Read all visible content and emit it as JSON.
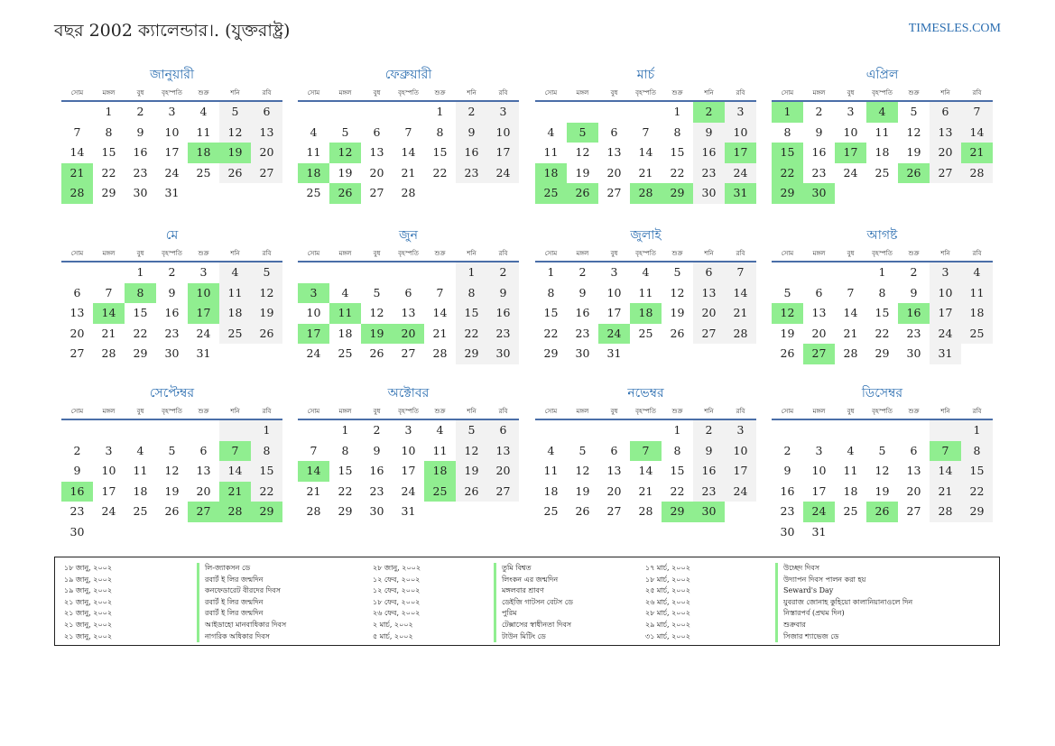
{
  "header": {
    "title": "বছর 2002 ক্যালেন্ডার।. (যুক্তরাষ্ট্র)",
    "site": "TIMESLES.COM"
  },
  "weekdays": [
    "সোম",
    "মঙ্গল",
    "বুধ",
    "বৃহস্পতি",
    "শুক্র",
    "শনি",
    "রবি"
  ],
  "colors": {
    "accent": "#2a6db0",
    "holiday": "#90ee90",
    "weekend": "#f2f2f2",
    "rule": "#4a6ea8"
  },
  "months": [
    {
      "name": "জানুয়ারী",
      "offset": 1,
      "days": 31,
      "holidays": [
        18,
        19,
        21,
        28
      ]
    },
    {
      "name": "ফেব্রুয়ারী",
      "offset": 4,
      "days": 28,
      "holidays": [
        12,
        18,
        26
      ]
    },
    {
      "name": "মার্চ",
      "offset": 4,
      "days": 31,
      "holidays": [
        2,
        5,
        17,
        18,
        25,
        26,
        28,
        29,
        31
      ]
    },
    {
      "name": "এপ্রিল",
      "offset": 0,
      "days": 30,
      "holidays": [
        1,
        4,
        15,
        17,
        21,
        22,
        26,
        29,
        30
      ]
    },
    {
      "name": "মে",
      "offset": 2,
      "days": 31,
      "holidays": [
        8,
        10,
        14,
        17
      ]
    },
    {
      "name": "জুন",
      "offset": 5,
      "days": 30,
      "holidays": [
        3,
        11,
        17,
        19,
        20
      ]
    },
    {
      "name": "জুলাই",
      "offset": 0,
      "days": 31,
      "holidays": [
        18,
        24
      ]
    },
    {
      "name": "আগষ্ট",
      "offset": 3,
      "days": 31,
      "holidays": [
        12,
        16,
        27
      ]
    },
    {
      "name": "সেপ্টেম্বর",
      "offset": 6,
      "days": 30,
      "holidays": [
        7,
        16,
        21,
        27,
        28,
        29
      ]
    },
    {
      "name": "অক্টোবর",
      "offset": 1,
      "days": 31,
      "holidays": [
        14,
        18,
        25
      ]
    },
    {
      "name": "নভেম্বর",
      "offset": 4,
      "days": 30,
      "holidays": [
        7,
        29,
        30
      ]
    },
    {
      "name": "ডিসেম্বর",
      "offset": 6,
      "days": 31,
      "holidays": [
        7,
        24,
        26
      ]
    }
  ],
  "holiday_list": [
    [
      {
        "date": "১৮ জানু, ২০০২",
        "name": "লি-জ্যাকসন ডে"
      },
      {
        "date": "১৯ জানু, ২০০২",
        "name": "রবার্ট ই লির জন্মদিন"
      },
      {
        "date": "১৯ জানু, ২০০২",
        "name": "কনফেডারেট বীরদের দিবস"
      },
      {
        "date": "২১ জানু, ২০০২",
        "name": "রবার্ট ই লির জন্মদিন"
      },
      {
        "date": "২১ জানু, ২০০২",
        "name": "রবার্ট ই লির জন্মদিন"
      },
      {
        "date": "২১ জানু, ২০০২",
        "name": "আইডাহো মানবাধিকার দিবস"
      },
      {
        "date": "২১ জানু, ২০০২",
        "name": "নাগরিক অধিকার দিবস"
      }
    ],
    [
      {
        "date": "২৮ জানু, ২০০২",
        "name": "তুমি বিশ্বত"
      },
      {
        "date": "১২ ফেব, ২০০২",
        "name": "লিংকন এর জন্মদিন"
      },
      {
        "date": "১২ ফেব, ২০০২",
        "name": "মঙ্গলবার শ্রাবণ"
      },
      {
        "date": "১৮ ফেব, ২০০২",
        "name": "ডেইজি গাটসন বেটস ডে"
      },
      {
        "date": "২৬ ফেব, ২০০২",
        "name": "পুরিম"
      },
      {
        "date": "২ মার্চ, ২০০২",
        "name": "টেক্সাসের স্বাধীনতা দিবস"
      },
      {
        "date": "৫ মার্চ, ২০০২",
        "name": "টাউন মিটিং ডে"
      }
    ],
    [
      {
        "date": "১৭ মার্চ, ২০০২",
        "name": "উচ্ছেদ দিবস"
      },
      {
        "date": "১৮ মার্চ, ২০০২",
        "name": "উদ্যাপন দিবস পালন করা হয়"
      },
      {
        "date": "২৫ মার্চ, ২০০২",
        "name": "Seward's Day"
      },
      {
        "date": "২৬ মার্চ, ২০০২",
        "name": "যুবরাজ জোনাহ কুহিয়ো কালানিয়ানাওলে দিন"
      },
      {
        "date": "২৮ মার্চ, ২০০২",
        "name": "নিস্তারপর্ব (প্রথম দিন)"
      },
      {
        "date": "২৯ মার্চ, ২০০২",
        "name": "শুক্রবার"
      },
      {
        "date": "৩১ মার্চ, ২০০২",
        "name": "সিজার শ্যাভেজ ডে"
      }
    ]
  ]
}
